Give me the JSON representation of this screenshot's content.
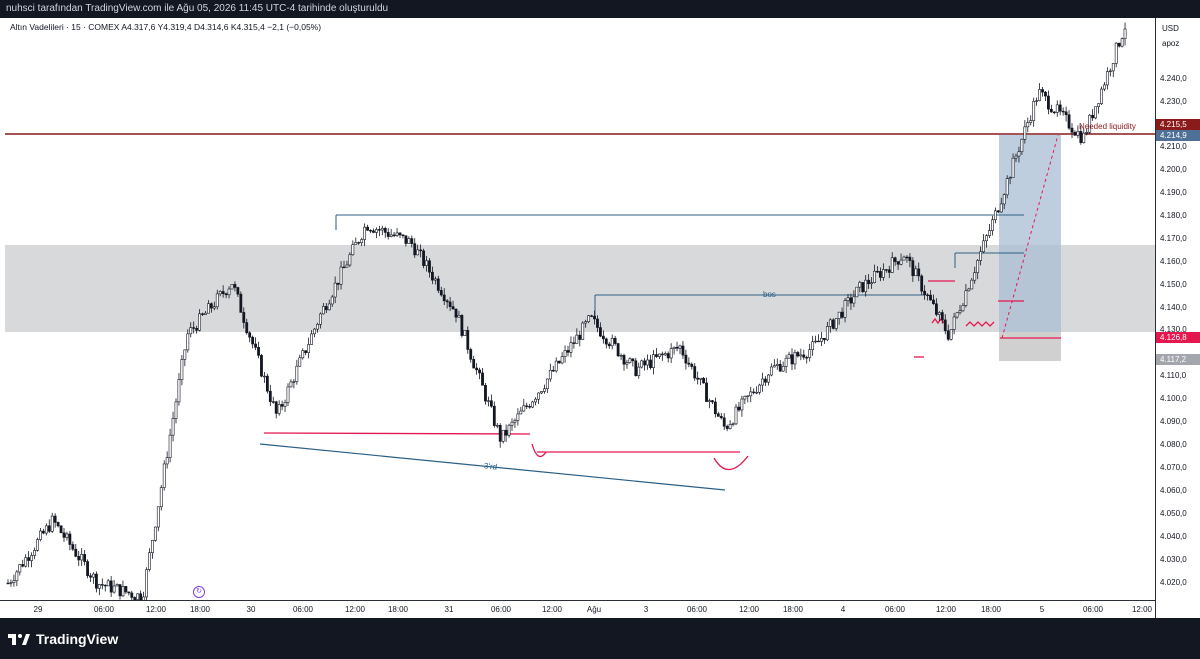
{
  "header": {
    "caption": "nuhsci tarafından TradingView.com ile Ağu 05, 2026 11:45 UTC-4 tarihinde oluşturuldu"
  },
  "symbol_line": "Altın Vadelileri · 15 · COMEX  A4.317,6  Y4.319,4  D4.314,6  K4.315,4  −2,1 (−0,05%)",
  "price_axis": {
    "currency": "USD",
    "sub": "apoz",
    "ticks": [
      "4.240,0",
      "4.230,0",
      "4.210,0",
      "4.200,0",
      "4.190,0",
      "4.180,0",
      "4.170,0",
      "4.160,0",
      "4.150,0",
      "4.140,0",
      "4.130,0",
      "4.110,0",
      "4.100,0",
      "4.090,0",
      "4.080,0",
      "4.070,0",
      "4.060,0",
      "4.050,0",
      "4.040,0",
      "4.030,0",
      "4.020,0"
    ],
    "tags": [
      {
        "text": "4.215,5",
        "color": "#8b1a1a"
      },
      {
        "text": "4.214,9",
        "color": "#4f7096"
      },
      {
        "text": "4.126,8",
        "color": "#e5174f"
      },
      {
        "text": "4.117,2",
        "color": "#a3a6ad"
      }
    ]
  },
  "time_axis": [
    "29",
    "06:00",
    "12:00",
    "18:00",
    "30",
    "06:00",
    "12:00",
    "18:00",
    "31",
    "06:00",
    "12:00",
    "Ağu",
    "3",
    "06:00",
    "12:00",
    "18:00",
    "4",
    "06:00",
    "12:00",
    "18:00",
    "5",
    "06:00",
    "12:00"
  ],
  "annotations": {
    "bos": "bos",
    "third": "3'rd",
    "liquidity": "Needed liquidity"
  },
  "footer": {
    "brand": "TradingView"
  },
  "colors": {
    "background": "#ffffff",
    "frame": "#131722",
    "zone": "#d6d7d9",
    "blue_line": "#2c5f85",
    "red_line": "#e5174f",
    "liquidity_line": "#8b1a1a",
    "position_box": "#a9bdd3",
    "candle": "#131722"
  },
  "chart_data": {
    "type": "candlestick",
    "instrument": "Altın Vadelileri",
    "interval": "15",
    "exchange": "COMEX",
    "ohlc_last": {
      "open": 4317.6,
      "high": 4319.4,
      "low": 4314.6,
      "close": 4315.4,
      "change": -2.1,
      "change_pct": -0.05
    },
    "ylim": [
      4012,
      4262
    ],
    "path_points": [
      {
        "t": "29 00:00",
        "price": 4018
      },
      {
        "t": "29 06:00",
        "price": 4045
      },
      {
        "t": "29 12:00",
        "price": 4018
      },
      {
        "t": "29 15:00",
        "price": 4012
      },
      {
        "t": "29 18:00",
        "price": 4125
      },
      {
        "t": "30 00:00",
        "price": 4148
      },
      {
        "t": "30 06:00",
        "price": 4090
      },
      {
        "t": "30 12:00",
        "price": 4135
      },
      {
        "t": "30 15:00",
        "price": 4173
      },
      {
        "t": "30 21:00",
        "price": 4165
      },
      {
        "t": "31 03:00",
        "price": 4135
      },
      {
        "t": "31 12:00",
        "price": 4080
      },
      {
        "t": "31 18:00",
        "price": 4105
      },
      {
        "t": "Ağu 00:00",
        "price": 4132
      },
      {
        "t": "3 00:00",
        "price": 4110
      },
      {
        "t": "3 06:00",
        "price": 4120
      },
      {
        "t": "3 09:00",
        "price": 4085
      },
      {
        "t": "3 18:00",
        "price": 4110
      },
      {
        "t": "4 06:00",
        "price": 4120
      },
      {
        "t": "4 09:00",
        "price": 4145
      },
      {
        "t": "4 12:00",
        "price": 4160
      },
      {
        "t": "4 18:00",
        "price": 4125
      },
      {
        "t": "5 00:00",
        "price": 4175
      },
      {
        "t": "5 03:00",
        "price": 4230
      },
      {
        "t": "5 06:00",
        "price": 4210
      },
      {
        "t": "5 12:00",
        "price": 4262
      }
    ],
    "levels": [
      {
        "price": 4215.5,
        "label": "Needed liquidity"
      },
      {
        "price": 4214.9
      },
      {
        "price": 4126.8
      },
      {
        "price": 4117.2
      }
    ]
  }
}
